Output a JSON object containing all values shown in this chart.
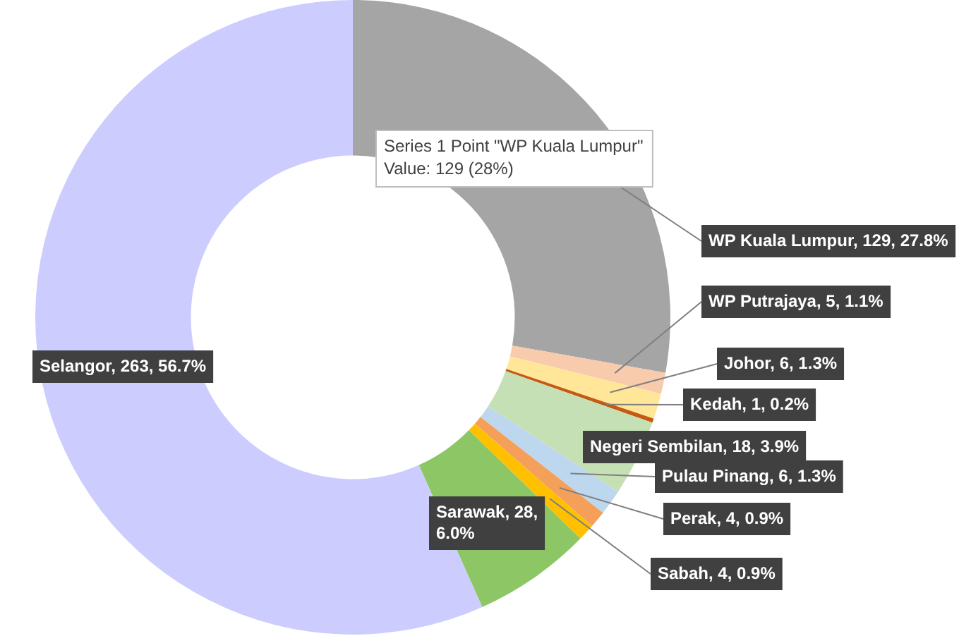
{
  "chart_data": {
    "type": "donut",
    "categories": [
      "WP Kuala Lumpur",
      "WP Putrajaya",
      "Johor",
      "Kedah",
      "Negeri Sembilan",
      "Pulau Pinang",
      "Perak",
      "Sabah",
      "Sarawak",
      "Selangor"
    ],
    "values": [
      129,
      5,
      6,
      1,
      18,
      6,
      4,
      4,
      28,
      263
    ],
    "colors": [
      "#a5a5a5",
      "#f8cbad",
      "#ffe699",
      "#c55a11",
      "#c5e0b4",
      "#bdd7ee",
      "#f4a05a",
      "#ffc000",
      "#8cc665",
      "#ccccff"
    ],
    "value_labels": [
      "129, 27.8%",
      "5, 1.1%",
      "6, 1.3%",
      "1, 0.2%",
      "18, 3.9%",
      "6, 1.3%",
      "4, 0.9%",
      "4, 0.9%",
      "28, 6.0%",
      "263, 56.7%"
    ],
    "annotations": [
      "Series 1 Point \"WP Kuala Lumpur\"\nValue: 129 (28%)"
    ],
    "legend": false
  }
}
